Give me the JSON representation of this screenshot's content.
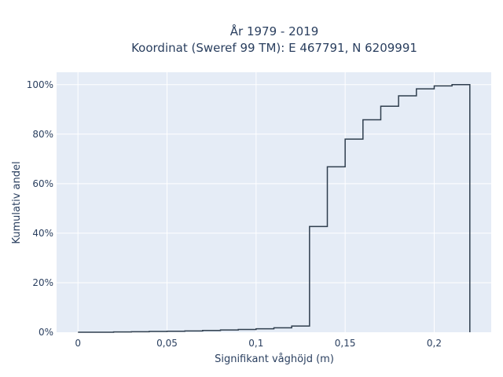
{
  "chart_data": {
    "type": "line",
    "subtype": "cumulative-step",
    "title_line1": "År 1979 - 2019",
    "title_line2": "Koordinat (Sweref 99 TM): E 467791, N 6209991",
    "xlabel": "Signifikant våghöjd (m)",
    "ylabel": "Kumulativ andel",
    "xlim": [
      -0.012,
      0.232
    ],
    "ylim": [
      0,
      1.05
    ],
    "x_ticks": [
      0,
      0.05,
      0.1,
      0.15,
      0.2
    ],
    "x_tick_labels": [
      "0",
      "0,05",
      "0,1",
      "0,15",
      "0,2"
    ],
    "y_ticks": [
      0,
      0.2,
      0.4,
      0.6,
      0.8,
      1.0
    ],
    "y_tick_labels": [
      "0%",
      "20%",
      "40%",
      "60%",
      "80%",
      "100%"
    ],
    "grid": true,
    "colors": {
      "plot_bg": "#e5ecf6",
      "grid": "#ffffff",
      "line": "#2f3e4e",
      "text": "#2a3f5f"
    },
    "bin_edges": [
      0,
      0.01,
      0.02,
      0.03,
      0.04,
      0.05,
      0.06,
      0.07,
      0.08,
      0.09,
      0.1,
      0.11,
      0.12,
      0.13,
      0.14,
      0.15,
      0.16,
      0.17,
      0.18,
      0.19,
      0.2,
      0.21,
      0.22
    ],
    "cumulative_values": [
      0.0,
      0.0,
      0.001,
      0.002,
      0.003,
      0.004,
      0.005,
      0.007,
      0.009,
      0.011,
      0.014,
      0.018,
      0.025,
      0.427,
      0.668,
      0.78,
      0.858,
      0.913,
      0.955,
      0.983,
      0.995,
      1.0
    ]
  }
}
